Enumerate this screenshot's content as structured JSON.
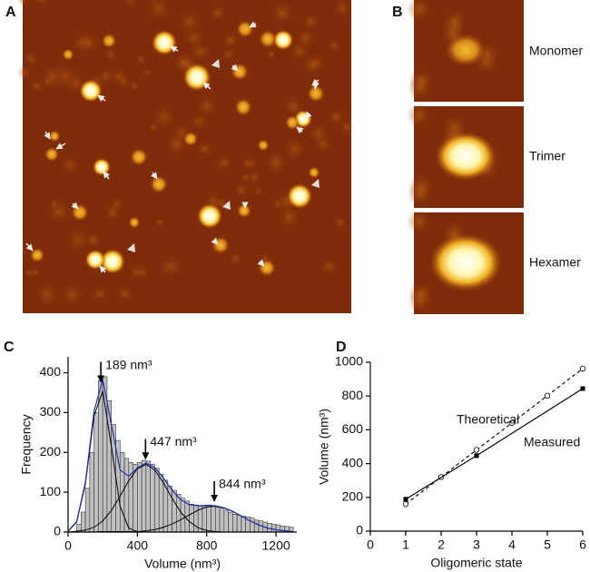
{
  "panel_labels": [
    "A",
    "B",
    "C",
    "D"
  ],
  "image_labels": [
    "Monomer",
    "Trimer",
    "Hexamer"
  ],
  "chart_data": [
    {
      "type": "histogram",
      "xlabel": "Volume (nm³)",
      "ylabel": "Frequency",
      "bins": [
        50,
        75,
        100,
        125,
        150,
        175,
        200,
        225,
        250,
        275,
        300,
        325,
        350,
        375,
        400,
        425,
        450,
        475,
        500,
        525,
        550,
        575,
        600,
        625,
        650,
        675,
        700,
        725,
        750,
        775,
        800,
        825,
        850,
        875,
        900,
        925,
        950,
        975,
        1000,
        1025,
        1050,
        1075,
        1100,
        1125,
        1150,
        1175,
        1200,
        1225,
        1250,
        1275,
        1300
      ],
      "counts": [
        20,
        50,
        110,
        200,
        300,
        380,
        390,
        330,
        270,
        230,
        200,
        185,
        175,
        170,
        175,
        180,
        178,
        170,
        160,
        145,
        130,
        115,
        105,
        95,
        85,
        78,
        70,
        68,
        65,
        65,
        68,
        66,
        62,
        60,
        55,
        50,
        45,
        42,
        40,
        38,
        35,
        30,
        28,
        25,
        22,
        20,
        18,
        15,
        14,
        12
      ],
      "color": "#c0c0c0",
      "xlim": [
        0,
        1320
      ],
      "xticks": [
        0,
        400,
        800,
        1200
      ],
      "ylim": [
        0,
        440
      ],
      "yticks": [
        0,
        100,
        200,
        300,
        400
      ],
      "fit_x": [
        0,
        50,
        100,
        150,
        200,
        250,
        300,
        350,
        400,
        450,
        500,
        550,
        600,
        650,
        700,
        750,
        800,
        850,
        900,
        950,
        1000,
        1050,
        1100,
        1150,
        1200,
        1250,
        1300
      ],
      "fits": [
        {
          "color": "#000000",
          "values": [
            2,
            25,
            120,
            292,
            354,
            215,
            65,
            10,
            1,
            0,
            0,
            0,
            0,
            0,
            0,
            0,
            0,
            0,
            0,
            0,
            0,
            0,
            0,
            0,
            0,
            0,
            0
          ]
        },
        {
          "color": "#000000",
          "values": [
            0,
            2,
            5,
            12,
            28,
            54,
            90,
            129,
            159,
            170,
            156,
            124,
            85,
            50,
            26,
            11,
            4,
            1,
            0,
            0,
            0,
            0,
            0,
            0,
            0,
            0,
            0
          ]
        },
        {
          "color": "#000000",
          "values": [
            0,
            0,
            0,
            0,
            1,
            1,
            1,
            1,
            1,
            3,
            6,
            12,
            20,
            31,
            43,
            55,
            63,
            65,
            61,
            52,
            40,
            28,
            18,
            10,
            6,
            3,
            1
          ]
        },
        {
          "color": "#2233aa",
          "values": [
            2,
            27,
            125,
            304,
            383,
            270,
            156,
            140,
            161,
            173,
            162,
            136,
            105,
            81,
            69,
            66,
            67,
            66,
            61,
            52,
            40,
            28,
            18,
            10,
            6,
            3,
            1
          ]
        }
      ],
      "annotations": [
        {
          "label": "189 nm³",
          "value": 189
        },
        {
          "label": "447 nm³",
          "value": 447
        },
        {
          "label": "844 nm³",
          "value": 844
        }
      ]
    },
    {
      "type": "line",
      "xlabel": "Oligomeric state",
      "ylabel": "Volume (nm³)",
      "xlim": [
        0,
        6
      ],
      "xticks": [
        0,
        1,
        2,
        3,
        4,
        5,
        6
      ],
      "ylim": [
        0,
        1000
      ],
      "yticks": [
        0,
        200,
        400,
        600,
        800,
        1000
      ],
      "series": [
        {
          "name": "Theoretical",
          "color": "#000000",
          "dashed": true,
          "marker": "open-circle",
          "x": [
            1,
            2,
            3,
            4,
            5,
            6
          ],
          "values": [
            160,
            320,
            481,
            641,
            802,
            962
          ]
        },
        {
          "name": "Measured",
          "color": "#000000",
          "dashed": false,
          "marker": "square",
          "x": [
            1,
            3,
            6
          ],
          "values": [
            189,
            447,
            844
          ]
        }
      ]
    }
  ]
}
